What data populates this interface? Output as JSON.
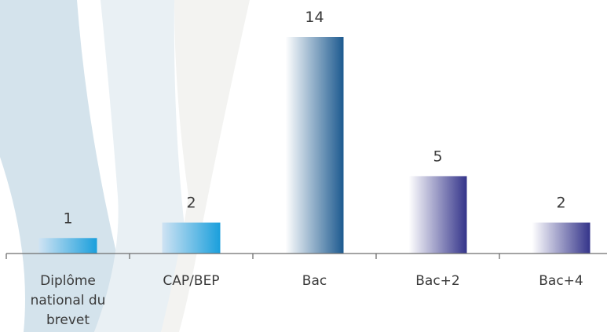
{
  "chart_data": {
    "type": "bar",
    "title": "",
    "xlabel": "",
    "ylabel": "",
    "categories": [
      [
        "Diplôme",
        "national du",
        "brevet"
      ],
      [
        "CAP/BEP"
      ],
      [
        "Bac"
      ],
      [
        "Bac+2"
      ],
      [
        "Bac+4"
      ]
    ],
    "values": [
      1,
      2,
      14,
      5,
      2
    ],
    "data_labels": [
      "1",
      "2",
      "14",
      "5",
      "2"
    ],
    "ylim": [
      0,
      15
    ],
    "grid": false,
    "legend": "none",
    "gradients": [
      {
        "from": "#cfe3f3",
        "to": "#1a9fdc"
      },
      {
        "from": "#cfe3f3",
        "to": "#1a9fdc"
      },
      {
        "from": "#ffffff",
        "to": "#1d5a8f"
      },
      {
        "from": "#ffffff",
        "to": "#34348a"
      },
      {
        "from": "#ffffff",
        "to": "#34348a"
      }
    ]
  },
  "colors": {
    "axis": "#6e6e6e",
    "text": "#3a3a3a",
    "bg_band_1": "#d4e3ec",
    "bg_band_2": "#e9f0f4",
    "bg_band_3": "#f3f3f1"
  }
}
